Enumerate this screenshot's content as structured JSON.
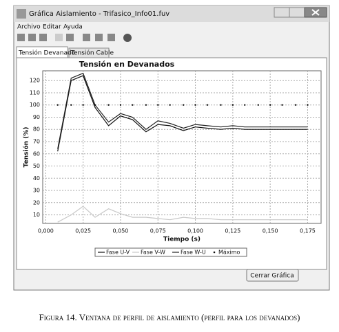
{
  "window": {
    "title": "Gráfica Aislamiento  -  Trifasico_Info01.fuv"
  },
  "menu": [
    "Archivo",
    "Editar",
    "Ayuda"
  ],
  "tabs": [
    "Tensión Devanado",
    "Tensión Cable"
  ],
  "chart_data": {
    "type": "line",
    "title": "Tensión en Devanados",
    "x_label": "Tiempo (s)",
    "y_label": "Tensión (%)",
    "x": [
      0.008,
      0.017,
      0.025,
      0.033,
      0.042,
      0.05,
      0.058,
      0.067,
      0.075,
      0.083,
      0.092,
      0.1,
      0.108,
      0.117,
      0.125,
      0.133,
      0.142,
      0.15,
      0.158,
      0.167,
      0.175
    ],
    "series": [
      {
        "name": "Fase U-V",
        "color": "#111111",
        "style": "line",
        "values": [
          62,
          120,
          124,
          98,
          83,
          91,
          88,
          78,
          84,
          83,
          79,
          82,
          81,
          80,
          81,
          80,
          80,
          80,
          80,
          80,
          80
        ]
      },
      {
        "name": "Fase V-W",
        "color": "#c8c8c8",
        "style": "line",
        "values": [
          4,
          10,
          17,
          8,
          15,
          11,
          8,
          8,
          7,
          6,
          8,
          7,
          7,
          6,
          6,
          6,
          6,
          6,
          6,
          6,
          6
        ]
      },
      {
        "name": "Fase W-U",
        "color": "#222222",
        "style": "line",
        "values": [
          64,
          122,
          126,
          100,
          86,
          93,
          90,
          80,
          87,
          85,
          81,
          84,
          83,
          82,
          83,
          82,
          82,
          82,
          82,
          82,
          82
        ]
      },
      {
        "name": "Máximo",
        "color": "#111111",
        "style": "dots",
        "values": [
          100,
          100,
          100,
          100,
          100,
          100,
          100,
          100,
          100,
          100,
          100,
          100,
          100,
          100,
          100,
          100,
          100,
          100,
          100,
          100,
          100
        ]
      }
    ],
    "xlim": [
      -0.002,
      0.184
    ],
    "ylim": [
      3,
      128
    ],
    "xticks": [
      {
        "value": 0,
        "label": "0,000"
      },
      {
        "value": 0.025,
        "label": "0,025"
      },
      {
        "value": 0.05,
        "label": "0,050"
      },
      {
        "value": 0.075,
        "label": "0,075"
      },
      {
        "value": 0.1,
        "label": "0,100"
      },
      {
        "value": 0.125,
        "label": "0,125"
      },
      {
        "value": 0.15,
        "label": "0,150"
      },
      {
        "value": 0.175,
        "label": "0,175"
      }
    ],
    "yticks": [
      10,
      20,
      30,
      40,
      50,
      60,
      70,
      80,
      90,
      100,
      110,
      120
    ],
    "grid": true,
    "legend": "bottom"
  },
  "button": "Cerrar Gráfica",
  "caption": "Figura 14. Ventana de perfil de aislamiento (perfil para los devanados)"
}
